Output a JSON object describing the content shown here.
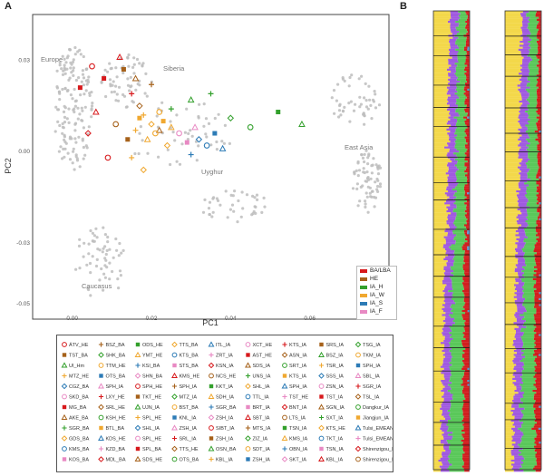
{
  "panels": {
    "a": "A",
    "b": "B"
  },
  "pca": {
    "xlabel": "PC1",
    "ylabel": "PC2",
    "xticks": [
      "0.00",
      "0.02",
      "0.04",
      "0.06"
    ],
    "yticks": [
      "0.03",
      "0.00",
      "-0.03",
      "-0.05"
    ],
    "regions": [
      "Europe",
      "Siberia",
      "Uyghur",
      "East Asia",
      "Caucasus"
    ]
  },
  "legend": {
    "items": [
      {
        "label": "BA/LBA",
        "color": "#d7191c"
      },
      {
        "label": "HE",
        "color": "#a6611a"
      },
      {
        "label": "IA_H",
        "color": "#33a02c"
      },
      {
        "label": "IA_W",
        "color": "#f0a830"
      },
      {
        "label": "IA_S",
        "color": "#2c7bb6"
      },
      {
        "label": "IA_F",
        "color": "#e889c3"
      }
    ]
  },
  "chart_data": {
    "type": "scatter",
    "xlabel": "PC1",
    "ylabel": "PC2",
    "xlim": [
      -0.01,
      0.08
    ],
    "ylim": [
      -0.055,
      0.045
    ],
    "series": [
      {
        "name": "BA/LBA",
        "points": [
          [
            0.005,
            0.028
          ],
          [
            0.008,
            0.024
          ],
          [
            0.012,
            0.031
          ],
          [
            0.015,
            0.019
          ],
          [
            0.004,
            0.006
          ],
          [
            0.009,
            -0.002
          ],
          [
            0.002,
            0.021
          ],
          [
            0.006,
            0.013
          ]
        ]
      },
      {
        "name": "HE",
        "points": [
          [
            0.013,
            0.027
          ],
          [
            0.016,
            0.024
          ],
          [
            0.02,
            0.022
          ],
          [
            0.017,
            0.015
          ],
          [
            0.011,
            0.009
          ],
          [
            0.014,
            0.004
          ],
          [
            0.022,
            0.007
          ]
        ]
      },
      {
        "name": "IA_H",
        "points": [
          [
            0.03,
            0.017
          ],
          [
            0.035,
            0.019
          ],
          [
            0.04,
            0.011
          ],
          [
            0.045,
            0.008
          ],
          [
            0.052,
            0.013
          ],
          [
            0.058,
            0.009
          ],
          [
            0.025,
            0.014
          ]
        ]
      },
      {
        "name": "IA_W",
        "points": [
          [
            0.018,
            0.012
          ],
          [
            0.02,
            0.009
          ],
          [
            0.021,
            0.006
          ],
          [
            0.023,
            0.01
          ],
          [
            0.019,
            0.004
          ],
          [
            0.016,
            0.007
          ],
          [
            0.024,
            0.002
          ],
          [
            0.022,
            0.013
          ],
          [
            0.017,
            0.011
          ],
          [
            0.025,
            0.008
          ],
          [
            0.015,
            -0.002
          ],
          [
            0.018,
            -0.006
          ]
        ]
      },
      {
        "name": "IA_S",
        "points": [
          [
            0.032,
            0.004
          ],
          [
            0.034,
            0.002
          ],
          [
            0.036,
            0.006
          ],
          [
            0.038,
            0.001
          ],
          [
            0.03,
            -0.001
          ]
        ]
      },
      {
        "name": "IA_F",
        "points": [
          [
            0.027,
            0.006
          ],
          [
            0.029,
            0.003
          ],
          [
            0.031,
            0.008
          ]
        ]
      }
    ]
  },
  "admixture": {
    "components": [
      "#f3d84a",
      "#a05ae0",
      "#5ac85a",
      "#d11f1f",
      "#5b9bd5"
    ]
  },
  "bottom_legend": {
    "columns": [
      [
        "ÁTV_HE",
        "TST_BA",
        "UI_Hm",
        "MTZ_HE",
        "CGZ_BA",
        "SKD_BA",
        "MG_BA",
        "AKE_BA",
        "SGR_BA",
        "GDS_BA",
        "KMS_BA",
        "KOS_BA"
      ],
      [
        "BSZ_BA",
        "SHK_BA",
        "TTM_HE",
        "OTS_BA",
        "SPH_IA",
        "LXY_HE",
        "SRL_HE",
        "KSH_HE",
        "BTL_BA",
        "KDS_HE",
        "KZD_BA",
        "MDL_BA"
      ],
      [
        "ODS_HE",
        "YMT_HE",
        "KSI_BA",
        "SHN_BA",
        "SPH_HE",
        "TKT_HE",
        "UJN_IA",
        "SPL_HE",
        "SHL_IA",
        "SPL_HE",
        "SPL_BA",
        "SDS_HE"
      ],
      [
        "TTS_BA",
        "KTS_BA",
        "STS_BA",
        "KMS_HE",
        "SPH_IA",
        "MTZ_IA",
        "BST_BA",
        "KNL_IA",
        "ZSH_IA",
        "SRL_IA",
        "TTS_HE",
        "OTS_BA"
      ],
      [
        "ITL_IA",
        "ZRT_IA",
        "KSN_IA",
        "NCS_HE",
        "KKT_IA",
        "SDH_IA",
        "SGR_BA",
        "ZSH_IA",
        "SIBT_IA",
        "ZSH_IA",
        "OSN_BA",
        "KBL_IA"
      ],
      [
        "XCT_HE",
        "AST_HE",
        "SDS_IA",
        "UNS_IA",
        "SHL_IA",
        "TTL_IA",
        "BRT_IA",
        "SBT_IA",
        "MTS_IA",
        "ZIZ_IA",
        "SDT_IA",
        "ZSH_IA"
      ],
      [
        "KTS_IA",
        "ASN_IA",
        "SRT_IA",
        "KTS_IA",
        "SPH_IA",
        "TST_HE",
        "BNT_IA",
        "LTS_IA",
        "TSN_IA",
        "KMS_IA",
        "OBN_IA",
        "SKT_IA"
      ],
      [
        "SRS_IA",
        "BSZ_IA",
        "TSR_IA",
        "SSS_IA",
        "ZSN_IA",
        "TST_IA",
        "SGN_IA",
        "SXT_IA",
        "KTS_HE",
        "TKT_IA",
        "TSN_IA",
        "KBL_IA"
      ],
      [
        "TSG_IA",
        "TKM_IA",
        "SPH_IA",
        "SBL_IA",
        "SGR_IA",
        "TSL_IA",
        "Dangkur_IA",
        "Jiangjun_IA",
        "Tulsi_EMEAN",
        "Tulsi_EMEAN",
        "Shirenzigou_IA",
        "Shirenzigou_IA"
      ]
    ]
  }
}
